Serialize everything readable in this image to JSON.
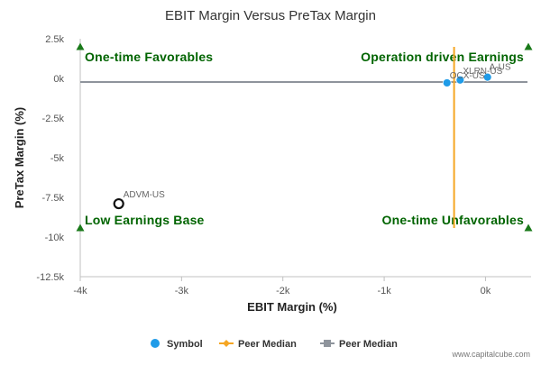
{
  "chart_data": {
    "type": "scatter",
    "title": "EBIT Margin Versus PreTax Margin",
    "xlabel": "EBIT Margin (%)",
    "ylabel": "PreTax Margin (%)",
    "xlim": [
      -4000,
      450
    ],
    "ylim": [
      -12500,
      2500
    ],
    "x_ticks": [
      {
        "value": -4000,
        "label": "-4k"
      },
      {
        "value": -3000,
        "label": "-3k"
      },
      {
        "value": -2000,
        "label": "-2k"
      },
      {
        "value": -1000,
        "label": "-1k"
      },
      {
        "value": 0,
        "label": "0k"
      }
    ],
    "y_ticks": [
      {
        "value": 2500,
        "label": "2.5k"
      },
      {
        "value": 0,
        "label": "0k"
      },
      {
        "value": -2500,
        "label": "-2.5k"
      },
      {
        "value": -5000,
        "label": "-5k"
      },
      {
        "value": -7500,
        "label": "-7.5k"
      },
      {
        "value": -10000,
        "label": "-10k"
      },
      {
        "value": -12500,
        "label": "-12.5k"
      }
    ],
    "points": [
      {
        "label": "A-US",
        "x": 20,
        "y": 80,
        "style": "filled"
      },
      {
        "label": "XLRN-US",
        "x": -250,
        "y": -100,
        "style": "filled"
      },
      {
        "label": "OCX-US",
        "x": -380,
        "y": -280,
        "style": "filled"
      },
      {
        "label": "ADVM-US",
        "x": -3620,
        "y": -7900,
        "style": "open"
      }
    ],
    "peer_median_x": -310,
    "peer_median_y": -230,
    "quadrant_labels": {
      "top_left": "One-time Favorables",
      "top_right": "Operation driven Earnings",
      "bottom_left": "Low Earnings Base",
      "bottom_right": "One-time Unfavorables"
    },
    "legend": [
      {
        "label": "Symbol",
        "color": "#1f9be8",
        "marker": "circle"
      },
      {
        "label": "Peer Median",
        "color": "#f5a623",
        "marker": "diamond-line"
      },
      {
        "label": "Peer Median",
        "color": "#8e949c",
        "marker": "square-line"
      }
    ],
    "legend_placement": "bottom-center",
    "grid": false,
    "colors": {
      "symbol": "#1f9be8",
      "peer_median_x": "#f5a623",
      "peer_median_y": "#8e949c",
      "quadrant_text": "#006400",
      "quadrant_marker": "#1a7a1a"
    },
    "credit": "www.capitalcube.com"
  }
}
